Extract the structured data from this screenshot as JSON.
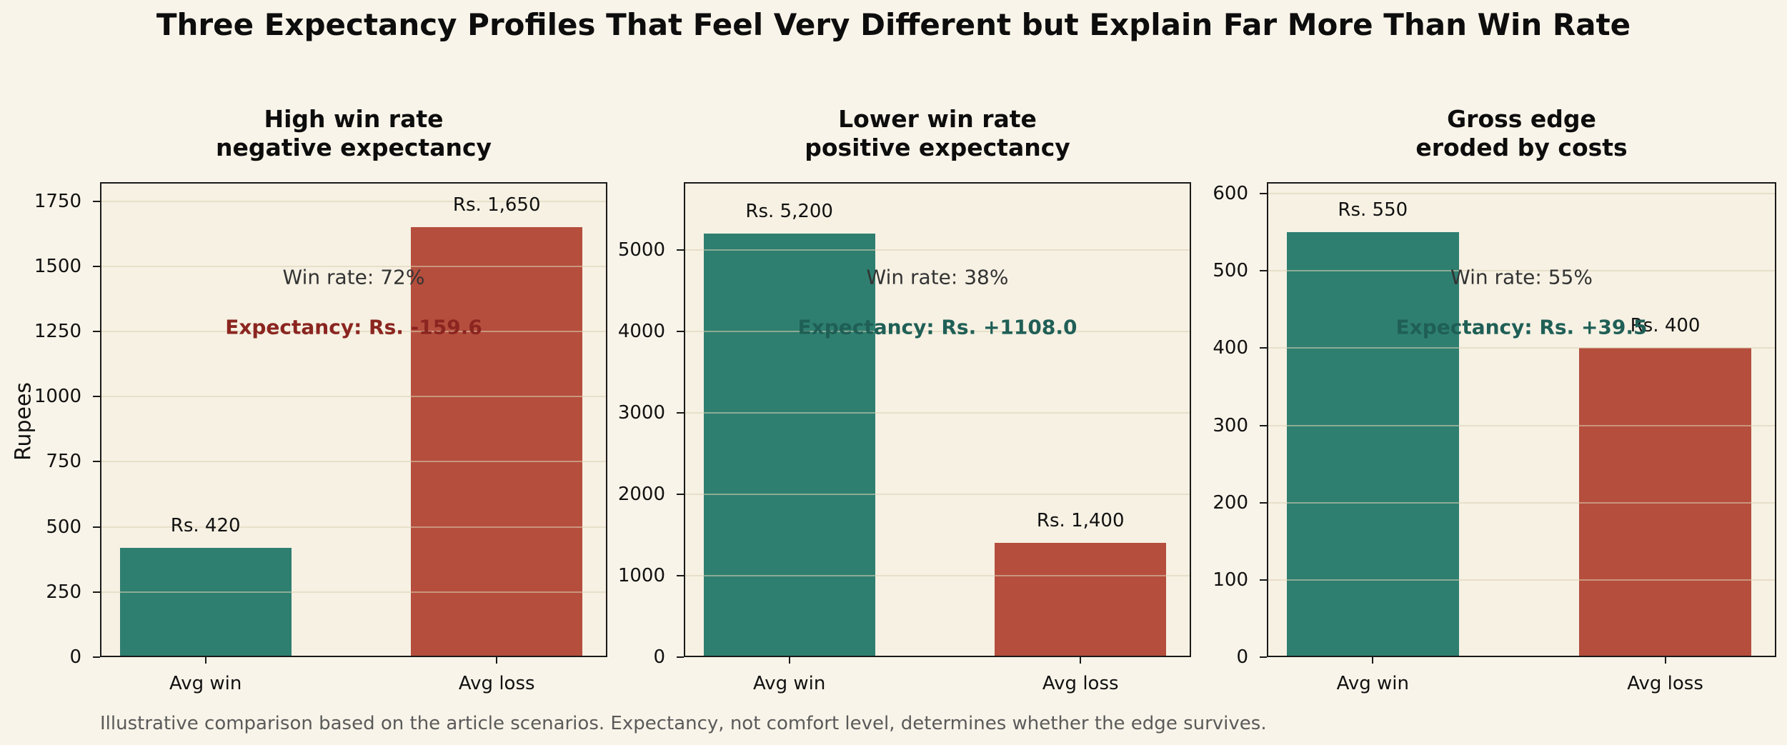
{
  "figure": {
    "title": "Three Expectancy Profiles That Feel Very Different but Explain Far More Than Win Rate",
    "ylabel": "Rupees",
    "caption": "Illustrative comparison based on the article scenarios. Expectancy, not comfort level, determines whether the edge survives."
  },
  "colors": {
    "figure_background": "#f9f4e9",
    "axes_background": "#f6f1e3",
    "win_bar": "#2e7f70",
    "loss_bar": "#b54e3d",
    "positive_expectancy_text": "#1f5f56",
    "negative_expectancy_text": "#8b2520",
    "win_rate_text": "#333333",
    "grid": "#e8e0cc",
    "caption_text": "#5a5a5a"
  },
  "chart_data": [
    {
      "type": "bar",
      "title": "High win rate\nnegative expectancy",
      "categories": [
        "Avg win",
        "Avg loss"
      ],
      "values": [
        420,
        1650
      ],
      "bar_labels": [
        "Rs. 420",
        "Rs. 1,650"
      ],
      "win_rate_label": "Win rate: 72%",
      "expectancy_label": "Expectancy: Rs. -159.6",
      "expectancy_sign": "negative",
      "ylabel": "Rupees",
      "yticks": [
        0,
        250,
        500,
        750,
        1000,
        1250,
        1500,
        1750
      ],
      "ylim": [
        0,
        1823
      ],
      "grid": true,
      "legend": "none"
    },
    {
      "type": "bar",
      "title": "Lower win rate\npositive expectancy",
      "categories": [
        "Avg win",
        "Avg loss"
      ],
      "values": [
        5200,
        1400
      ],
      "bar_labels": [
        "Rs. 5,200",
        "Rs. 1,400"
      ],
      "win_rate_label": "Win rate: 38%",
      "expectancy_label": "Expectancy: Rs. +1108.0",
      "expectancy_sign": "positive",
      "ylabel": "",
      "yticks": [
        0,
        1000,
        2000,
        3000,
        4000,
        5000
      ],
      "ylim": [
        0,
        5833
      ],
      "grid": true,
      "legend": "none"
    },
    {
      "type": "bar",
      "title": "Gross edge\neroded by costs",
      "categories": [
        "Avg win",
        "Avg loss"
      ],
      "values": [
        550,
        400
      ],
      "bar_labels": [
        "Rs. 550",
        "Rs. 400"
      ],
      "win_rate_label": "Win rate: 55%",
      "expectancy_label": "Expectancy: Rs. +39.5",
      "expectancy_sign": "positive",
      "ylabel": "",
      "yticks": [
        0,
        100,
        200,
        300,
        400,
        500,
        600
      ],
      "ylim": [
        0,
        615
      ],
      "grid": true,
      "legend": "none"
    }
  ]
}
